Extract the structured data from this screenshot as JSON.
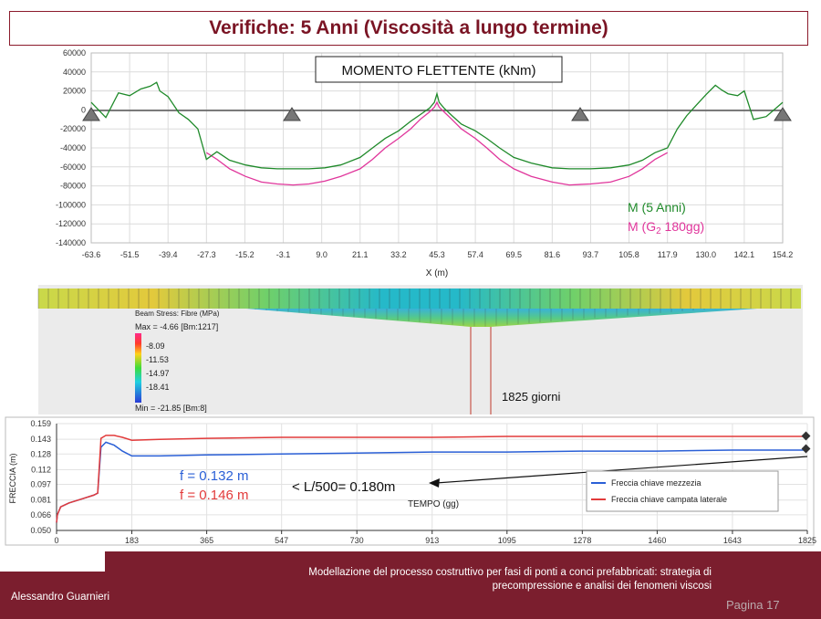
{
  "title": "Verifiche: 5 Anni (Viscosità a lungo termine)",
  "moment_chart": {
    "box_title": "MOMENTO FLETTENTE (kNm)",
    "yticks": [
      "60000",
      "40000",
      "20000",
      "0",
      "-20000",
      "-40000",
      "-60000",
      "-80000",
      "-100000",
      "-120000",
      "-140000"
    ],
    "xticks": [
      "-63.6",
      "-51.5",
      "-39.4",
      "-27.3",
      "-15.2",
      "-3.1",
      "9.0",
      "21.1",
      "33.2",
      "45.3",
      "57.4",
      "69.5",
      "81.6",
      "93.7",
      "105.8",
      "117.9",
      "130.0",
      "142.1",
      "154.2"
    ],
    "xlabel": "X (m)",
    "legend": {
      "series1": "M (5 Anni)",
      "series2_prefix": "M (G",
      "series2_sub": "2",
      "series2_suffix": " 180gg)"
    },
    "colors": {
      "series1": "#1f8a2a",
      "series2": "#e0359b",
      "axis_line": "#555555"
    }
  },
  "stress_panel": {
    "legend_title": "Beam Stress: Fibre (MPa)",
    "max_label": "Max = -4.66 [Bm:1217]",
    "min_label": "Min = -21.85 [Bm:8]",
    "scale_values": [
      "-8.09",
      "-11.53",
      "-14.97",
      "-18.41"
    ],
    "time_label": "1825 giorni"
  },
  "deflection_chart": {
    "yticks": [
      "0.159",
      "0.143",
      "0.128",
      "0.112",
      "0.097",
      "0.081",
      "0.066",
      "0.050"
    ],
    "xticks": [
      "0",
      "183",
      "365",
      "547",
      "730",
      "913",
      "1095",
      "1278",
      "1460",
      "1643",
      "1825"
    ],
    "ylabel": "FRECCIA (m)",
    "xlabel": "TEMPO (gg)",
    "annotation_blue": "f = 0.132 m",
    "annotation_red": "f = 0.146 m",
    "annotation_limit": "< L/500= 0.180m",
    "legend": [
      "Freccia chiave mezzezia",
      "Freccia chiave campata laterale"
    ],
    "colors": {
      "blue": "#2a5fd6",
      "red": "#e23b3b"
    }
  },
  "chart_data": [
    {
      "type": "line",
      "title": "MOMENTO FLETTENTE (kNm)",
      "xlabel": "X (m)",
      "ylabel": "",
      "xlim": [
        -63.6,
        154.2
      ],
      "ylim": [
        -140000,
        60000
      ],
      "series": [
        {
          "name": "M (5 Anni)",
          "x": [
            -63.6,
            -59,
            -55,
            -51.5,
            -48,
            -45,
            -43,
            -42,
            -39.4,
            -36,
            -33,
            -30,
            -27.3,
            -24,
            -20,
            -15,
            -10,
            -5,
            0,
            5,
            10,
            15,
            21.1,
            25,
            29,
            33.2,
            37,
            40,
            43,
            44.5,
            45.3,
            46,
            47.5,
            50,
            53,
            57.4,
            61,
            65,
            69.5,
            75,
            81.6,
            87,
            93.7,
            100,
            105.8,
            110,
            114,
            117.9,
            121,
            124,
            127,
            130,
            133,
            135,
            137,
            140,
            142.1,
            145,
            149,
            154.2
          ],
          "y": [
            8000,
            -8000,
            18000,
            15000,
            22000,
            25000,
            29000,
            20000,
            14000,
            -3000,
            -10000,
            -20000,
            -52000,
            -44000,
            -53000,
            -58000,
            -61000,
            -62000,
            -62000,
            -62000,
            -61000,
            -58000,
            -50000,
            -40000,
            -30000,
            -22000,
            -12000,
            -5000,
            2000,
            8000,
            17000,
            8000,
            2000,
            -6000,
            -15000,
            -22000,
            -30000,
            -40000,
            -50000,
            -56000,
            -61000,
            -62000,
            -62000,
            -61000,
            -58000,
            -53000,
            -45000,
            -40000,
            -20000,
            -6000,
            5000,
            16000,
            26000,
            21000,
            17000,
            15000,
            20000,
            -10000,
            -7000,
            8000
          ]
        },
        {
          "name": "M (G2 180gg)",
          "x": [
            -27.3,
            -24,
            -20,
            -15,
            -10,
            -5,
            0,
            5,
            10,
            15,
            21.1,
            25,
            29,
            33.2,
            37,
            40,
            43,
            44.5,
            45.3,
            46,
            47.5,
            50,
            53,
            57.4,
            61,
            65,
            69.5,
            75,
            81.6,
            87,
            93.7,
            100,
            105.8,
            110,
            114,
            117.9
          ],
          "y": [
            -45000,
            -52000,
            -62000,
            -70000,
            -76000,
            -78000,
            -79000,
            -78000,
            -75000,
            -70000,
            -62000,
            -52000,
            -40000,
            -30000,
            -20000,
            -10000,
            -2000,
            3000,
            8000,
            3000,
            -2000,
            -10000,
            -20000,
            -30000,
            -40000,
            -52000,
            -62000,
            -70000,
            -76000,
            -79000,
            -78000,
            -76000,
            -70000,
            -62000,
            -52000,
            -45000
          ]
        }
      ]
    },
    {
      "type": "line",
      "xlabel": "TEMPO (gg)",
      "ylabel": "FRECCIA (m)",
      "xlim": [
        0,
        1825
      ],
      "ylim": [
        0.05,
        0.159
      ],
      "series": [
        {
          "name": "Freccia chiave mezzezia",
          "x": [
            0,
            2,
            10,
            30,
            60,
            90,
            100,
            108,
            120,
            140,
            160,
            183,
            250,
            365,
            547,
            730,
            913,
            1095,
            1278,
            1460,
            1643,
            1825
          ],
          "y": [
            0.058,
            0.066,
            0.074,
            0.078,
            0.082,
            0.086,
            0.088,
            0.135,
            0.14,
            0.137,
            0.131,
            0.126,
            0.126,
            0.127,
            0.128,
            0.129,
            0.13,
            0.13,
            0.131,
            0.131,
            0.132,
            0.132
          ]
        },
        {
          "name": "Freccia chiave campata laterale",
          "x": [
            0,
            2,
            10,
            30,
            60,
            90,
            100,
            108,
            120,
            140,
            160,
            183,
            250,
            365,
            547,
            730,
            913,
            1095,
            1278,
            1460,
            1643,
            1825
          ],
          "y": [
            0.058,
            0.066,
            0.074,
            0.078,
            0.082,
            0.086,
            0.088,
            0.144,
            0.147,
            0.147,
            0.145,
            0.142,
            0.143,
            0.144,
            0.145,
            0.145,
            0.145,
            0.146,
            0.146,
            0.146,
            0.146,
            0.146
          ]
        }
      ]
    }
  ],
  "footer": {
    "author": "Alessandro Guarnieri",
    "subtitle": "Modellazione del processo costruttivo per fasi di ponti a conci prefabbricati: strategia di precompressione e analisi dei fenomeni viscosi",
    "page": "Pagina 17"
  }
}
